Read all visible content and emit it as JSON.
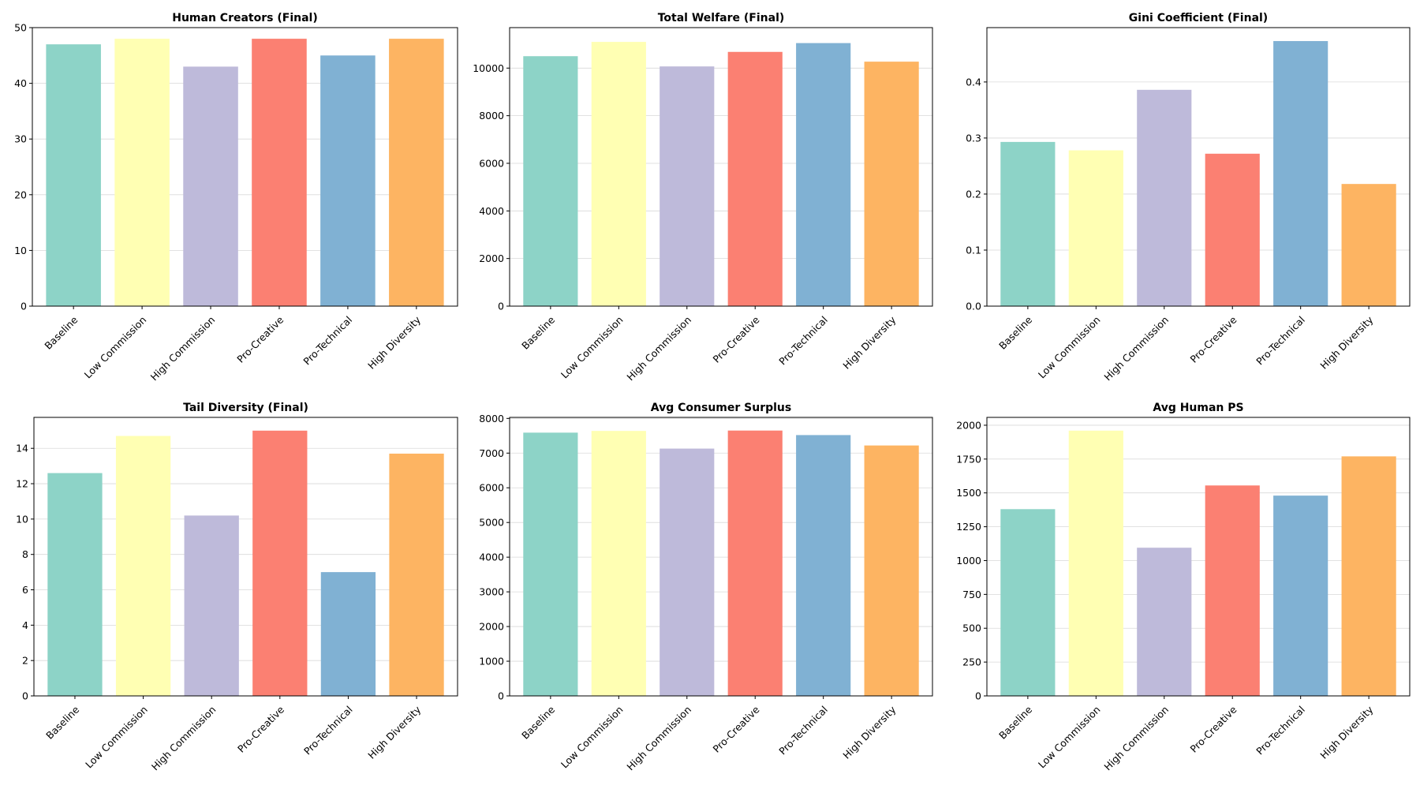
{
  "colors": [
    "#8dd3c7",
    "#ffffb3",
    "#bebada",
    "#fb8072",
    "#80b1d3",
    "#fdb462"
  ],
  "chart_data": [
    {
      "type": "bar",
      "title": "Human Creators (Final)",
      "categories": [
        "Baseline",
        "Low Commission",
        "High Commission",
        "Pro-Creative",
        "Pro-Technical",
        "High Diversity"
      ],
      "values": [
        47,
        48,
        43,
        48,
        45,
        48
      ],
      "ylim": [
        0,
        50
      ],
      "yticks": [
        0,
        10,
        20,
        30,
        40,
        50
      ],
      "tick_labels": [
        "0",
        "10",
        "20",
        "30",
        "40",
        "50"
      ],
      "grid": true,
      "xlabel": "",
      "ylabel": ""
    },
    {
      "type": "bar",
      "title": "Total Welfare (Final)",
      "categories": [
        "Baseline",
        "Low Commission",
        "High Commission",
        "Pro-Creative",
        "Pro-Technical",
        "High Diversity"
      ],
      "values": [
        10500,
        11100,
        10070,
        10680,
        11050,
        10270
      ],
      "ylim": [
        0,
        11700
      ],
      "yticks": [
        0,
        2000,
        4000,
        6000,
        8000,
        10000
      ],
      "tick_labels": [
        "0",
        "2000",
        "4000",
        "6000",
        "8000",
        "10000"
      ],
      "grid": true,
      "xlabel": "",
      "ylabel": ""
    },
    {
      "type": "bar",
      "title": "Gini Coefficient (Final)",
      "categories": [
        "Baseline",
        "Low Commission",
        "High Commission",
        "Pro-Creative",
        "Pro-Technical",
        "High Diversity"
      ],
      "values": [
        0.293,
        0.278,
        0.386,
        0.272,
        0.473,
        0.218
      ],
      "ylim": [
        0,
        0.497
      ],
      "yticks": [
        0,
        0.1,
        0.2,
        0.3,
        0.4
      ],
      "tick_labels": [
        "0.0",
        "0.1",
        "0.2",
        "0.3",
        "0.4"
      ],
      "grid": true,
      "xlabel": "",
      "ylabel": ""
    },
    {
      "type": "bar",
      "title": "Tail Diversity (Final)",
      "categories": [
        "Baseline",
        "Low Commission",
        "High Commission",
        "Pro-Creative",
        "Pro-Technical",
        "High Diversity"
      ],
      "values": [
        12.6,
        14.7,
        10.2,
        15.0,
        7.0,
        13.7
      ],
      "ylim": [
        0,
        15.75
      ],
      "yticks": [
        0,
        2,
        4,
        6,
        8,
        10,
        12,
        14
      ],
      "tick_labels": [
        "0",
        "2",
        "4",
        "6",
        "8",
        "10",
        "12",
        "14"
      ],
      "grid": true,
      "xlabel": "",
      "ylabel": ""
    },
    {
      "type": "bar",
      "title": "Avg Consumer Surplus",
      "categories": [
        "Baseline",
        "Low Commission",
        "High Commission",
        "Pro-Creative",
        "Pro-Technical",
        "High Diversity"
      ],
      "values": [
        7590,
        7640,
        7130,
        7650,
        7520,
        7220
      ],
      "ylim": [
        0,
        8030
      ],
      "yticks": [
        0,
        1000,
        2000,
        3000,
        4000,
        5000,
        6000,
        7000,
        8000
      ],
      "tick_labels": [
        "0",
        "1000",
        "2000",
        "3000",
        "4000",
        "5000",
        "6000",
        "7000",
        "8000"
      ],
      "grid": true,
      "xlabel": "",
      "ylabel": ""
    },
    {
      "type": "bar",
      "title": "Avg Human PS",
      "categories": [
        "Baseline",
        "Low Commission",
        "High Commission",
        "Pro-Creative",
        "Pro-Technical",
        "High Diversity"
      ],
      "values": [
        1380,
        1960,
        1095,
        1555,
        1480,
        1770
      ],
      "ylim": [
        0,
        2058
      ],
      "yticks": [
        0,
        250,
        500,
        750,
        1000,
        1250,
        1500,
        1750,
        2000
      ],
      "tick_labels": [
        "0",
        "250",
        "500",
        "750",
        "1000",
        "1250",
        "1500",
        "1750",
        "2000"
      ],
      "grid": true,
      "xlabel": "",
      "ylabel": ""
    }
  ]
}
